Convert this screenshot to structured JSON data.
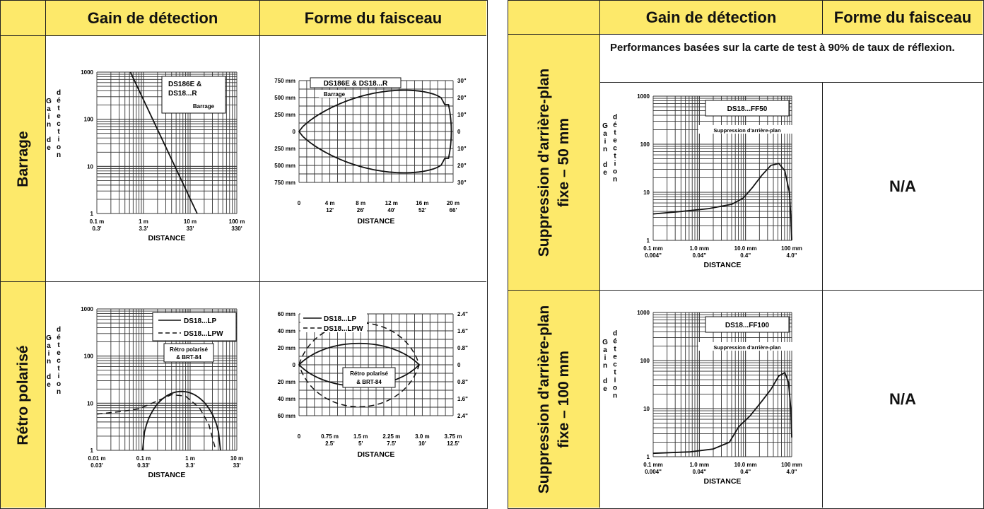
{
  "left_table": {
    "header": {
      "col1": "Gain de détection",
      "col2": "Forme du faisceau"
    },
    "rows": [
      {
        "label": "Barrage",
        "gain_chart": {
          "ylabel_letters": [
            "G",
            "a",
            "i",
            "n"
          ],
          "ylabel_de": [
            "d",
            "e"
          ],
          "ylabel_detection": [
            "d",
            "é",
            "t",
            "e",
            "c",
            "t",
            "i",
            "o",
            "n"
          ],
          "yticks": [
            "1000",
            "100",
            "10",
            "1"
          ],
          "xticks_m": [
            "0.1 m",
            "1 m",
            "10 m",
            "100 m"
          ],
          "xticks_ft": [
            "0.3'",
            "3.3'",
            "33'",
            "330'"
          ],
          "xlabel": "DISTANCE",
          "legend1": "DS186E &",
          "legend2": "DS18...R",
          "legend3": "Barrage"
        },
        "beam_chart": {
          "legend1": "DS186E & DS18...R",
          "legend2": "Barrage",
          "yticks_left": [
            "750 mm",
            "500 mm",
            "250 mm",
            "0",
            "250 mm",
            "500 mm",
            "750 mm"
          ],
          "yticks_right": [
            "30\"",
            "20\"",
            "10\"",
            "0",
            "10\"",
            "20\"",
            "30\""
          ],
          "xticks_m": [
            "0",
            "4 m",
            "8 m",
            "12 m",
            "16 m",
            "20 m"
          ],
          "xticks_ft": [
            "",
            "12'",
            "26'",
            "40'",
            "52'",
            "66'"
          ],
          "xlabel": "DISTANCE"
        }
      },
      {
        "label": "Rétro polarisé",
        "gain_chart": {
          "ylabel_letters": [
            "G",
            "a",
            "i",
            "n"
          ],
          "ylabel_de": [
            "d",
            "e"
          ],
          "ylabel_detection": [
            "d",
            "é",
            "t",
            "e",
            "c",
            "t",
            "i",
            "o",
            "n"
          ],
          "yticks": [
            "1000",
            "100",
            "10",
            "1"
          ],
          "xticks_m": [
            "0.01 m",
            "0.1 m",
            "1 m",
            "10 m"
          ],
          "xticks_ft": [
            "0.03'",
            "0.33'",
            "3.3'",
            "33'"
          ],
          "xlabel": "DISTANCE",
          "legend_solid": "DS18...LP",
          "legend_dash": "DS18...LPW",
          "legend3": "Rétro polarisé",
          "legend4": "& BRT-84"
        },
        "beam_chart": {
          "legend_solid": "DS18...LP",
          "legend_dash": "DS18...LPW",
          "legend3": "Rétro polarisé",
          "legend4": "& BRT-84",
          "yticks_left": [
            "60 mm",
            "40 mm",
            "20 mm",
            "0",
            "20 mm",
            "40 mm",
            "60 mm"
          ],
          "yticks_right": [
            "2.4\"",
            "1.6\"",
            "0.8\"",
            "0",
            "0.8\"",
            "1.6\"",
            "2.4\""
          ],
          "xticks_m": [
            "0",
            "0.75 m",
            "1.5 m",
            "2.25 m",
            "3.0 m",
            "3.75 m"
          ],
          "xticks_ft": [
            "",
            "2.5'",
            "5'",
            "7.5'",
            "10'",
            "12.5'"
          ],
          "xlabel": "DISTANCE"
        }
      }
    ]
  },
  "right_table": {
    "header": {
      "col1": "Gain de détection",
      "col2": "Forme du faisceau"
    },
    "note": "Performances basées sur la carte de test à 90% de taux de réflexion.",
    "rows": [
      {
        "label_line1": "Suppression d'arrière-plan",
        "label_line2": "fixe – 50 mm",
        "gain_chart": {
          "ylabel_letters": [
            "G",
            "a",
            "i",
            "n"
          ],
          "ylabel_de": [
            "d",
            "e"
          ],
          "ylabel_detection": [
            "d",
            "é",
            "t",
            "e",
            "c",
            "t",
            "i",
            "o",
            "n"
          ],
          "yticks": [
            "1000",
            "100",
            "10",
            "1"
          ],
          "xticks_m": [
            "0.1 mm",
            "1.0 mm",
            "10.0 mm",
            "100 mm"
          ],
          "xticks_in": [
            "0.004\"",
            "0.04\"",
            "0.4\"",
            "4.0\""
          ],
          "xlabel": "DISTANCE",
          "legend1": "DS18...FF50",
          "legend2": "Suppression d'arrière-plan"
        },
        "beam": "N/A"
      },
      {
        "label_line1": "Suppression d'arrière-plan",
        "label_line2": "fixe – 100 mm",
        "gain_chart": {
          "ylabel_letters": [
            "G",
            "a",
            "i",
            "n"
          ],
          "ylabel_de": [
            "d",
            "e"
          ],
          "ylabel_detection": [
            "d",
            "é",
            "t",
            "e",
            "c",
            "t",
            "i",
            "o",
            "n"
          ],
          "yticks": [
            "1000",
            "100",
            "10",
            "1"
          ],
          "xticks_m": [
            "0.1 mm",
            "1.0 mm",
            "10.0 mm",
            "100 mm"
          ],
          "xticks_in": [
            "0.004\"",
            "0.04\"",
            "0.4\"",
            "4.0\""
          ],
          "xlabel": "DISTANCE",
          "legend1": "DS18...FF100",
          "legend2": "Suppression d'arrière-plan"
        },
        "beam": "N/A"
      }
    ]
  }
}
